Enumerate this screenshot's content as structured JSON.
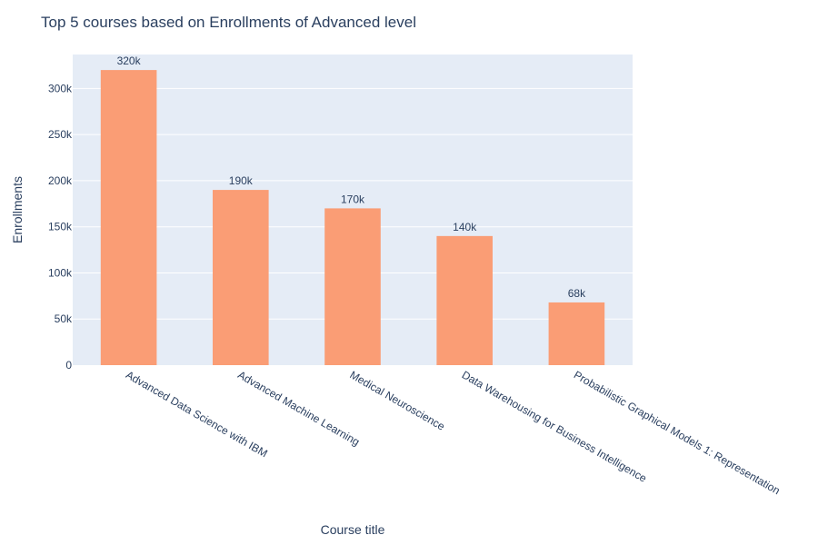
{
  "chart_data": {
    "type": "bar",
    "title": "Top 5 courses based on Enrollments of Advanced level",
    "xlabel": "Course title",
    "ylabel": "Enrollments",
    "categories": [
      "Advanced Data Science with IBM",
      "Advanced Machine Learning",
      "Medical Neuroscience",
      "Data Warehousing for Business Intelligence",
      "Probabilistic Graphical Models 1: Representation"
    ],
    "values": [
      320000,
      190000,
      170000,
      140000,
      68000
    ],
    "data_labels": [
      "320k",
      "190k",
      "170k",
      "140k",
      "68k"
    ],
    "ylim": [
      0,
      336842
    ],
    "yticks": [
      0,
      50000,
      100000,
      150000,
      200000,
      250000,
      300000
    ],
    "ytick_labels": [
      "0",
      "50k",
      "100k",
      "150k",
      "200k",
      "250k",
      "300k"
    ],
    "grid": true,
    "colors": {
      "bar": "#fa9d75",
      "plot_bg": "#e5ecf6",
      "grid": "#ffffff",
      "text": "#2a3f5f"
    }
  }
}
